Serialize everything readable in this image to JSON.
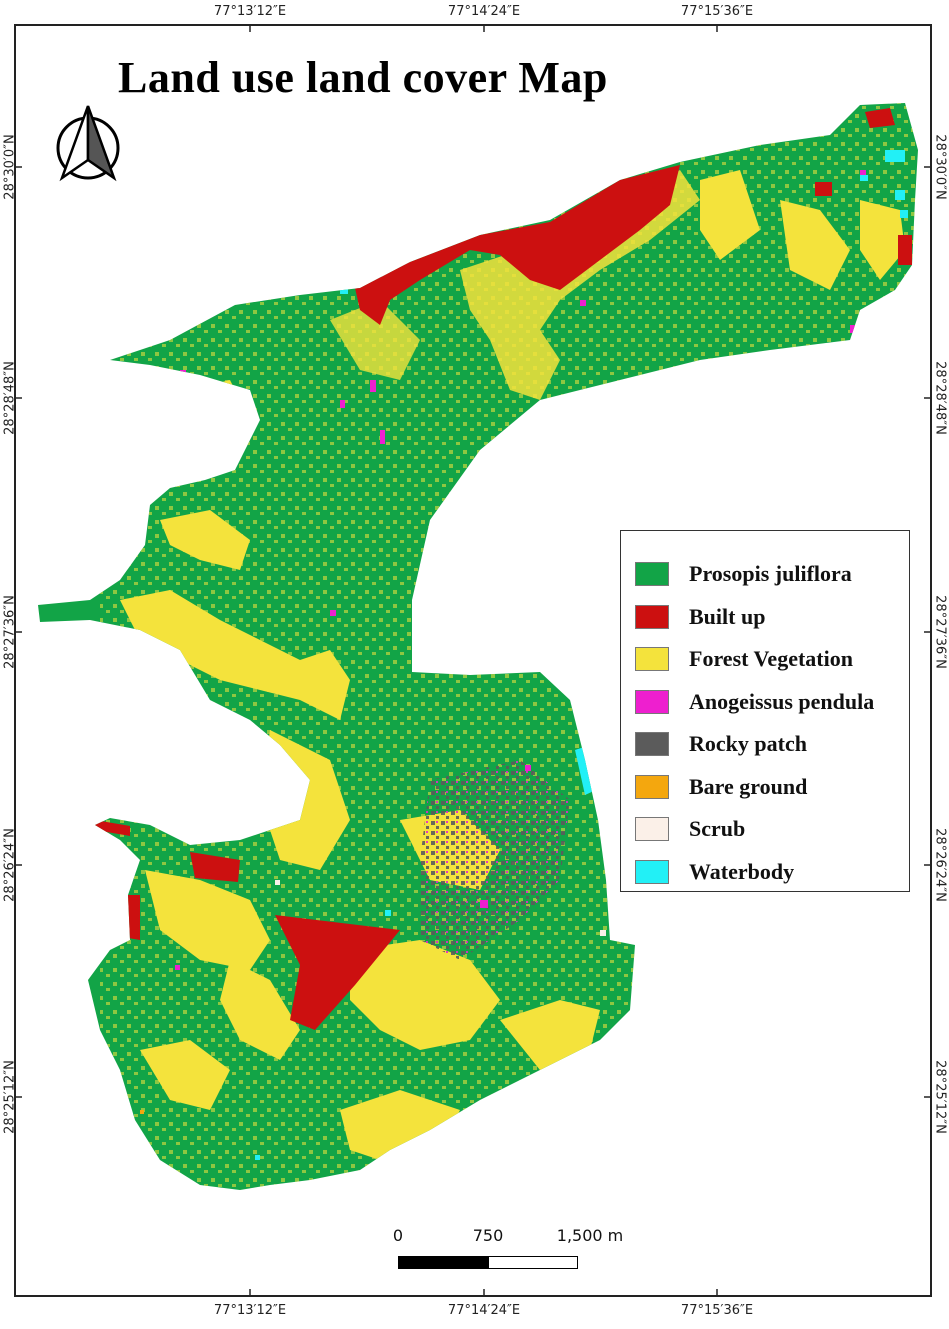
{
  "map": {
    "title": "Land use land cover Map",
    "graticule": {
      "longitude_top": [
        "77°13′12″E",
        "77°14′24″E",
        "77°15′36″E"
      ],
      "longitude_bottom": [
        "77°13′12″E",
        "77°14′24″E",
        "77°15′36″E"
      ],
      "latitude_left": [
        "28°30′0″N",
        "28°28′48″N",
        "28°27′36″N",
        "28°26′24″N",
        "28°25′12″N"
      ],
      "latitude_right": [
        "28°30′0″N",
        "28°28′48″N",
        "28°27′36″N",
        "28°26′24″N",
        "28°25′12″N"
      ]
    },
    "north_arrow_icon": "north-arrow-icon",
    "legend": [
      {
        "label": "Prosopis juliflora",
        "color": "#12a447"
      },
      {
        "label": "Built up",
        "color": "#cc1010"
      },
      {
        "label": "Forest Vegetation",
        "color": "#f4e33c"
      },
      {
        "label": "Anogeissus pendula",
        "color": "#ee1fcf"
      },
      {
        "label": "Rocky patch",
        "color": "#5b5b5b"
      },
      {
        "label": "Bare ground",
        "color": "#f4a70e"
      },
      {
        "label": "Scrub",
        "color": "#fbf0e8"
      },
      {
        "label": "Waterbody",
        "color": "#22f0f6"
      }
    ],
    "scale_bar": {
      "labels": [
        "0",
        "750",
        "1,500 m"
      ]
    }
  }
}
